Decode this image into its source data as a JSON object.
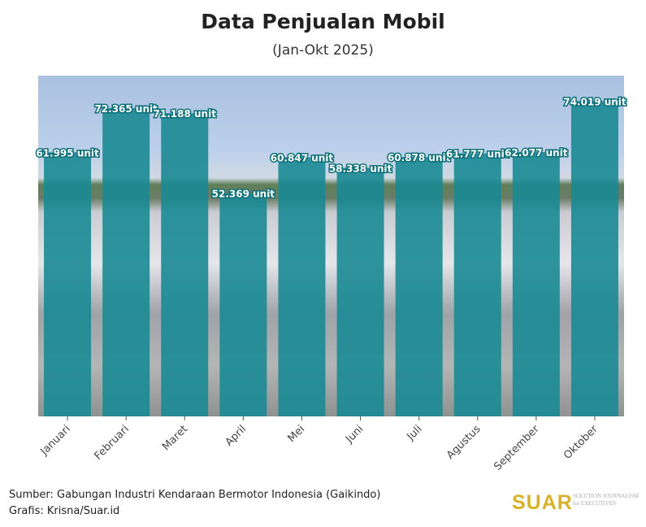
{
  "chart_data": {
    "type": "bar",
    "title": "Data Penjualan Mobil",
    "subtitle": "(Jan-Okt 2025)",
    "categories": [
      "Januari",
      "Februari",
      "Maret",
      "April",
      "Mei",
      "Juni",
      "Juli",
      "Agustus",
      "September",
      "Oktober"
    ],
    "values": [
      61995,
      72365,
      71188,
      52369,
      60847,
      58338,
      60878,
      61777,
      62077,
      74019
    ],
    "data_labels": [
      "61.995 unit",
      "72.365 unit",
      "71.188 unit",
      "52.369 unit",
      "60.847 unit",
      "58.338 unit",
      "60.878 unit",
      "61.777 unit",
      "62.077 unit",
      "74.019 unit"
    ],
    "xlabel": "",
    "ylabel": "",
    "ylim": [
      0,
      80000
    ],
    "grid": false,
    "bar_color": "#1a8a93"
  },
  "footer": {
    "source": "Sumber: Gabungan Industri Kendaraan Bermotor Indonesia (Gaikindo)",
    "credit": "Grafis: Krisna/Suar.id"
  },
  "logo": {
    "text": "SUAR",
    "tagline1": "SOLUTION JOURNALISM",
    "tagline2": "for EXECUTIVES"
  }
}
